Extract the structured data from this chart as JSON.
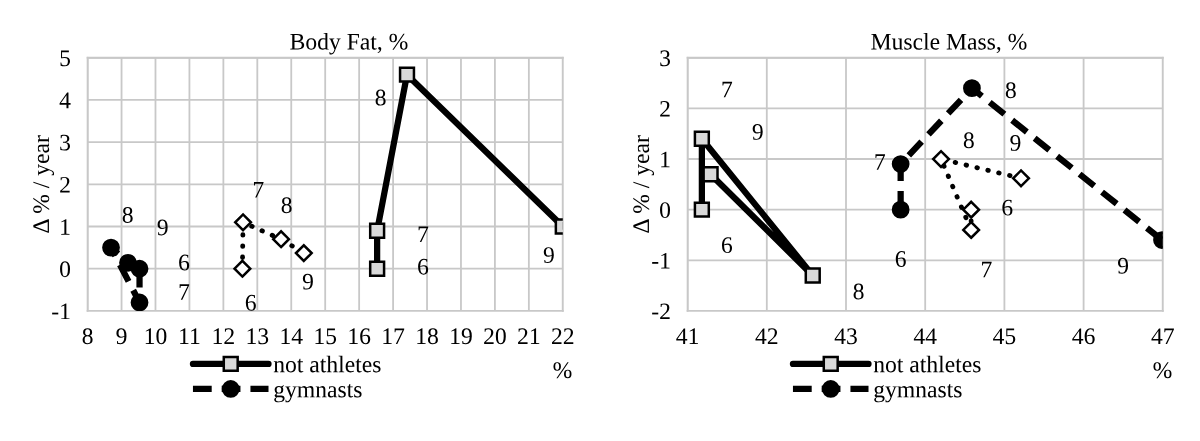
{
  "chart_data": [
    {
      "type": "line",
      "title": "Body Fat, %",
      "xlabel": "%",
      "ylabel": "Δ % / year",
      "xlim": [
        8,
        22
      ],
      "xticks": [
        8,
        9,
        10,
        11,
        12,
        13,
        14,
        15,
        16,
        17,
        18,
        19,
        20,
        21,
        22
      ],
      "ylim": [
        -1,
        5
      ],
      "yticks": [
        -1,
        0,
        1,
        2,
        3,
        4,
        5
      ],
      "grid": true,
      "legend": "bottom",
      "series": [
        {
          "name": "not athletes",
          "color": "#000000",
          "marker": "square",
          "line_style": "solid",
          "x": [
            16.53,
            16.53,
            17.41,
            22.0
          ],
          "values": [
            0,
            0.9,
            4.6,
            1.0
          ]
        },
        {
          "name": "gymnasts",
          "color": "#000000",
          "marker": "circle",
          "line_style": "dashed",
          "x": [
            9.53,
            9.53,
            8.69,
            9.19
          ],
          "values": [
            0,
            -0.8,
            0.5,
            0.14
          ]
        },
        {
          "color": "#000000",
          "marker": "diamond",
          "line_style": "dotted",
          "x": [
            12.56,
            12.58,
            13.7,
            14.37
          ],
          "values": [
            0,
            1.1,
            0.7,
            0.37
          ]
        }
      ],
      "annotations": [
        {
          "text": "6",
          "x": 16.53,
          "y": 0
        },
        {
          "text": "7",
          "x": 16.53,
          "y": 0.9
        },
        {
          "text": "8",
          "x": 17.41,
          "y": 4.6
        },
        {
          "text": "9",
          "x": 22.0,
          "y": 1.0
        },
        {
          "text": "6",
          "x": 9.53,
          "y": 0
        },
        {
          "text": "7",
          "x": 9.53,
          "y": -0.8
        },
        {
          "text": "8",
          "x": 8.69,
          "y": 0.5
        },
        {
          "text": "9",
          "x": 9.19,
          "y": 0.14
        },
        {
          "text": "6",
          "x": 12.56,
          "y": 0
        },
        {
          "text": "7",
          "x": 12.58,
          "y": 1.1
        },
        {
          "text": "8",
          "x": 13.7,
          "y": 0.7
        },
        {
          "text": "9",
          "x": 14.37,
          "y": 0.37
        }
      ]
    },
    {
      "type": "line",
      "title": "Muscle Mass, %",
      "xlabel": "%",
      "ylabel": "Δ % / year",
      "xlim": [
        41,
        47
      ],
      "xticks": [
        41,
        42,
        43,
        44,
        45,
        46,
        47
      ],
      "ylim": [
        -2,
        3
      ],
      "yticks": [
        -2,
        -1,
        0,
        1,
        2,
        3
      ],
      "grid": true,
      "legend": "bottom",
      "series": [
        {
          "name": "not athletes",
          "color": "#000000",
          "marker": "square",
          "line_style": "solid",
          "x": [
            41.18,
            41.18,
            42.58,
            41.29
          ],
          "values": [
            0,
            1.4,
            -1.3,
            0.7
          ]
        },
        {
          "name": "gymnasts",
          "color": "#000000",
          "marker": "circle",
          "line_style": "dashed",
          "x": [
            43.69,
            43.69,
            44.59,
            46.99
          ],
          "values": [
            0,
            0.9,
            2.4,
            -0.6
          ]
        },
        {
          "color": "#000000",
          "marker": "diamond",
          "line_style": "dotted",
          "x": [
            44.58,
            44.58,
            44.2,
            45.21
          ],
          "values": [
            0,
            -0.4,
            1.0,
            0.62
          ]
        }
      ],
      "annotations": [
        {
          "text": "6",
          "x": 41.18,
          "y": 0
        },
        {
          "text": "7",
          "x": 41.18,
          "y": 1.4
        },
        {
          "text": "8",
          "x": 42.58,
          "y": -1.3
        },
        {
          "text": "9",
          "x": 41.29,
          "y": 0.7
        },
        {
          "text": "6",
          "x": 43.69,
          "y": 0
        },
        {
          "text": "7",
          "x": 43.69,
          "y": 0.9
        },
        {
          "text": "8",
          "x": 44.59,
          "y": 2.4
        },
        {
          "text": "9",
          "x": 46.99,
          "y": -0.6
        },
        {
          "text": "6",
          "x": 44.58,
          "y": 0
        },
        {
          "text": "7",
          "x": 44.58,
          "y": -0.4
        },
        {
          "text": "8",
          "x": 44.2,
          "y": 1.0
        },
        {
          "text": "9",
          "x": 45.21,
          "y": 0.62
        }
      ]
    }
  ]
}
